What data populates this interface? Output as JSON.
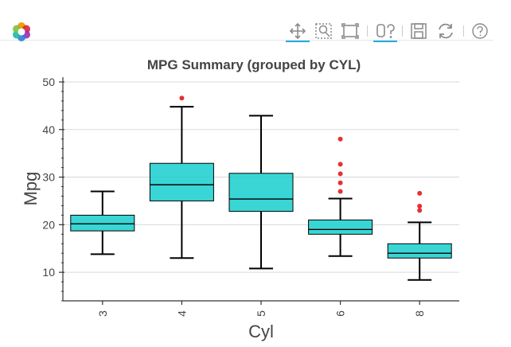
{
  "toolbar": {
    "tools": [
      "pan-icon",
      "box-zoom-icon",
      "reset-zoom-icon",
      "hover-icon",
      "save-icon",
      "reset-icon",
      "help-icon"
    ],
    "accent_color": "#26aae1"
  },
  "chart_data": {
    "type": "box",
    "title": "MPG Summary (grouped by CYL)",
    "xlabel": "Cyl",
    "ylabel": "Mpg",
    "categories": [
      "3",
      "4",
      "5",
      "6",
      "8"
    ],
    "ylim": [
      4,
      51
    ],
    "yticks": [
      10,
      20,
      30,
      40,
      50
    ],
    "grid": true,
    "box_color": "#17cfcf",
    "outlier_color": "#e41a1c",
    "boxes": [
      {
        "category": "3",
        "lower_whisker": 13.8,
        "q1": 18.7,
        "median": 20.2,
        "q3": 22.0,
        "upper_whisker": 27.0,
        "outliers": []
      },
      {
        "category": "4",
        "lower_whisker": 13.0,
        "q1": 25.0,
        "median": 28.4,
        "q3": 32.9,
        "upper_whisker": 44.8,
        "outliers": [
          46.6
        ]
      },
      {
        "category": "5",
        "lower_whisker": 10.8,
        "q1": 22.8,
        "median": 25.4,
        "q3": 30.8,
        "upper_whisker": 42.9,
        "outliers": []
      },
      {
        "category": "6",
        "lower_whisker": 13.4,
        "q1": 18.0,
        "median": 19.0,
        "q3": 21.0,
        "upper_whisker": 25.5,
        "outliers": [
          27.0,
          28.8,
          30.7,
          32.7,
          38.0
        ]
      },
      {
        "category": "8",
        "lower_whisker": 8.4,
        "q1": 13.0,
        "median": 14.0,
        "q3": 16.0,
        "upper_whisker": 20.5,
        "outliers": [
          23.0,
          23.9,
          26.6
        ]
      }
    ]
  }
}
